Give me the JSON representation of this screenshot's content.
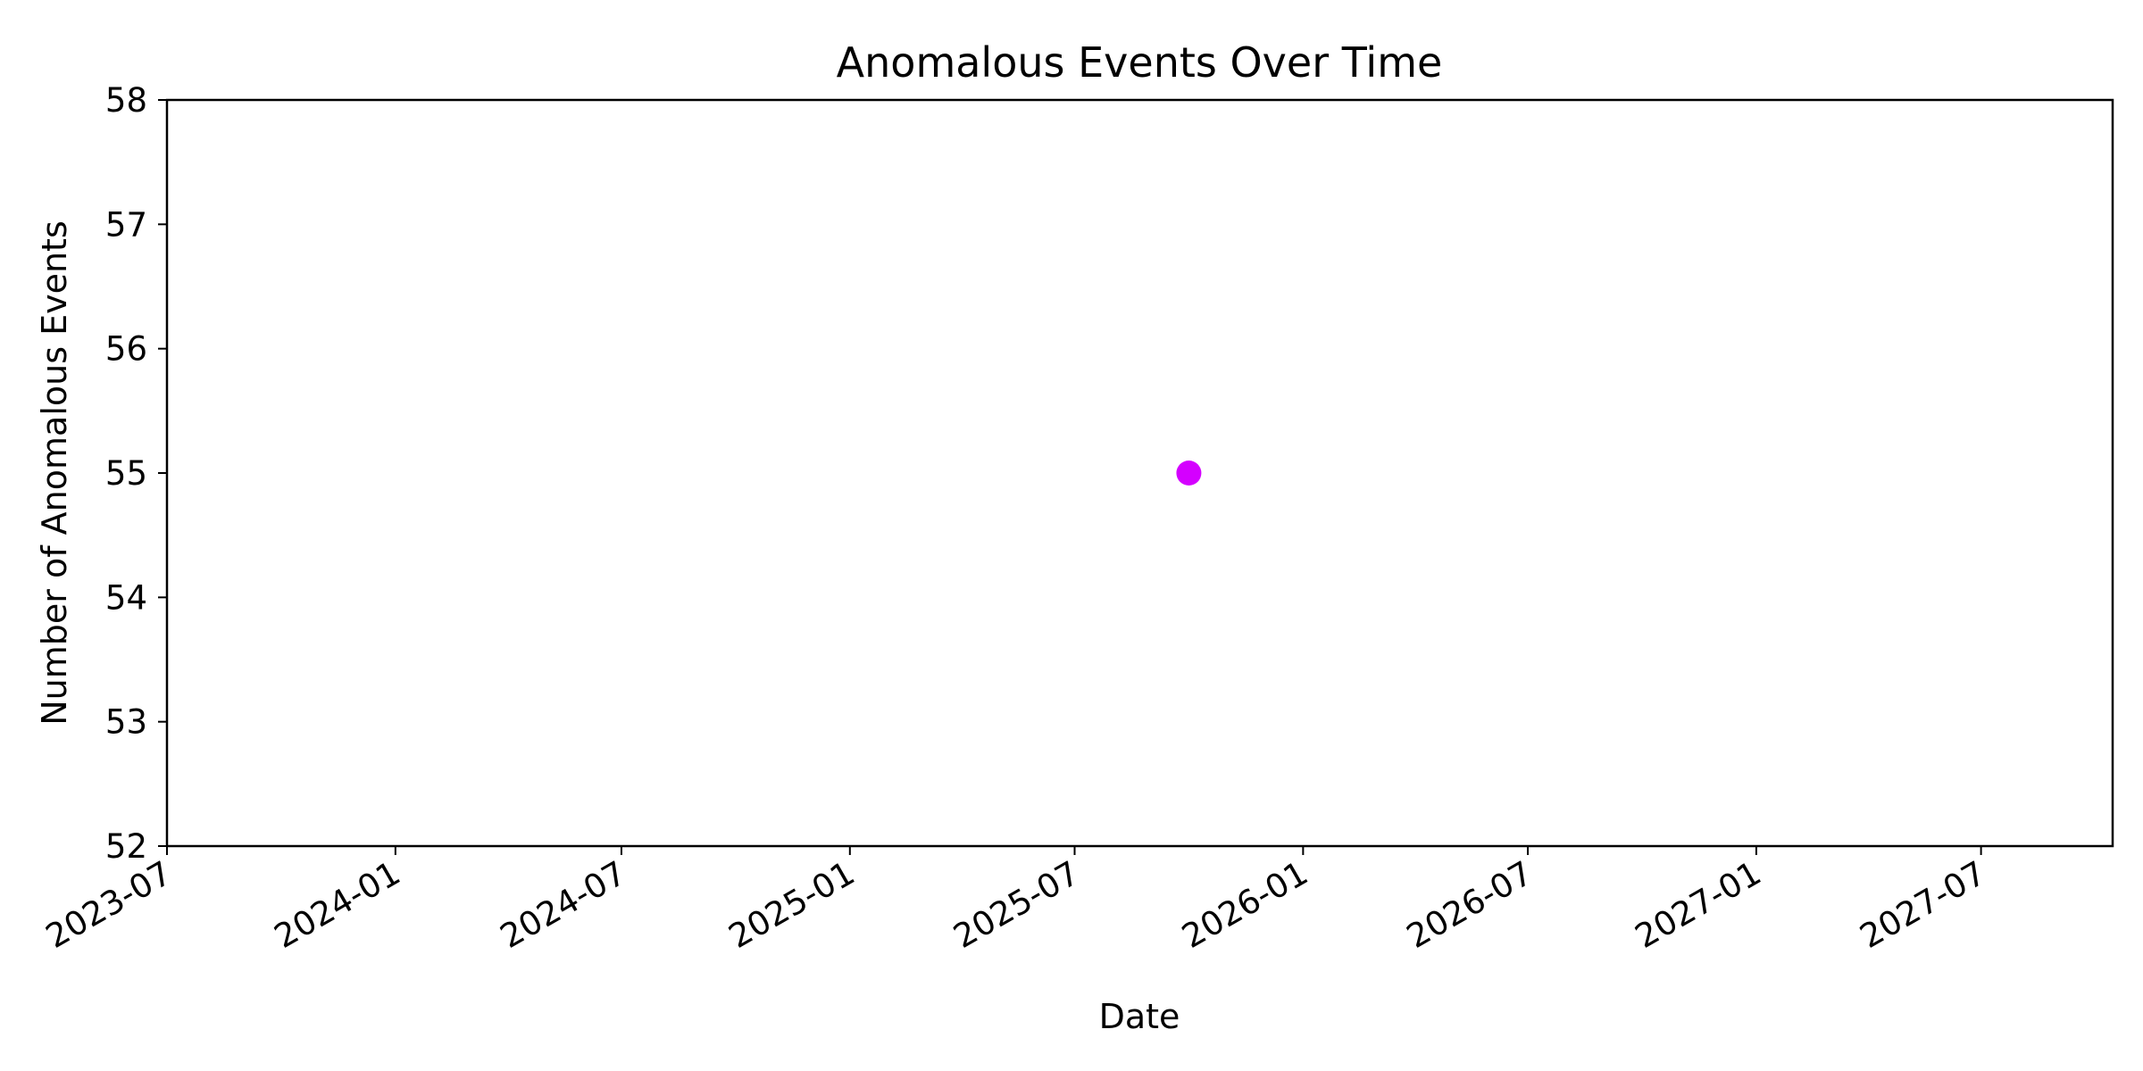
{
  "chart_data": {
    "type": "scatter",
    "title": "Anomalous Events Over Time",
    "xlabel": "Date",
    "ylabel": "Number of Anomalous Events",
    "x_tick_labels": [
      "2023-07",
      "2024-01",
      "2024-07",
      "2025-01",
      "2025-07",
      "2026-01",
      "2026-07",
      "2027-01",
      "2027-07"
    ],
    "y_tick_labels": [
      "52",
      "53",
      "54",
      "55",
      "56",
      "57",
      "58"
    ],
    "xlim": [
      "2023-07-01",
      "2027-10-15"
    ],
    "ylim": [
      52,
      58
    ],
    "grid": false,
    "series": [
      {
        "color": "#d400ff",
        "points": [
          {
            "x": "2025-10-01",
            "y": 55
          }
        ]
      }
    ]
  }
}
